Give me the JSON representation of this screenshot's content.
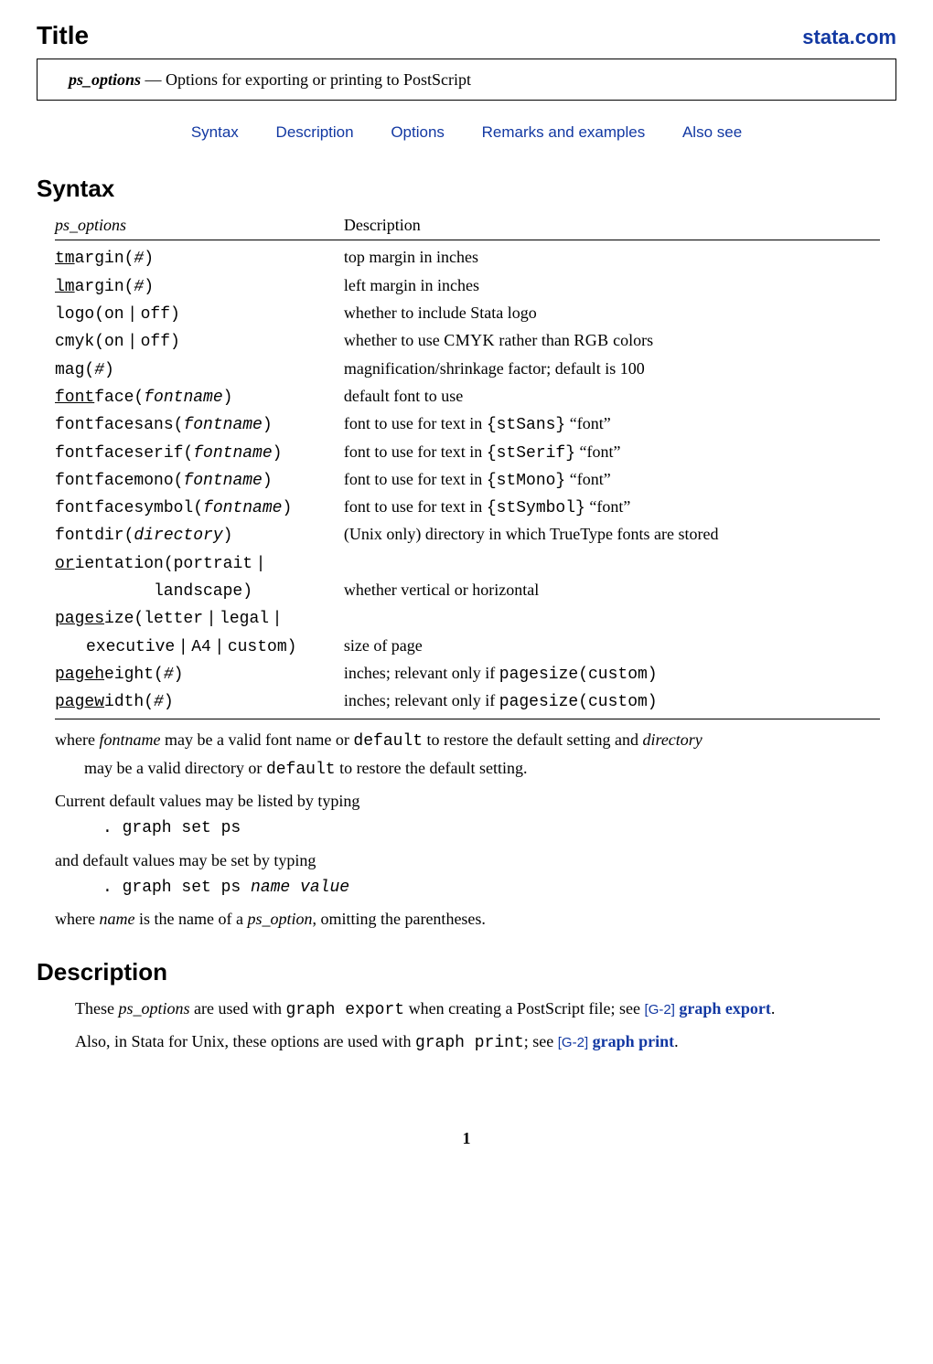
{
  "header": {
    "title_label": "Title",
    "site_link": "stata.com"
  },
  "title_box": {
    "name": "ps_options",
    "dash": " — ",
    "desc": "Options for exporting or printing to PostScript"
  },
  "nav": {
    "syntax": "Syntax",
    "description": "Description",
    "options": "Options",
    "remarks": "Remarks and examples",
    "also_see": "Also see"
  },
  "syntax": {
    "heading": "Syntax",
    "col1": "ps_options",
    "col2": "Description",
    "rows": [
      {
        "opt": "<span class=\"u\">tm</span>argin(<span class=\"arg\">#</span>)",
        "desc": "top margin in inches"
      },
      {
        "opt": "<span class=\"u\">lm</span>argin(<span class=\"arg\">#</span>)",
        "desc": "left margin in inches"
      },
      {
        "opt": "logo(on&thinsp;|&thinsp;off)",
        "desc": "whether to include Stata logo"
      },
      {
        "opt": "cmyk(on&thinsp;|&thinsp;off)",
        "desc": "whether to use <span class=\"sc\">CMYK</span> rather than <span class=\"sc\">RGB</span> colors",
        "desc_is_html": true
      },
      {
        "opt": "mag(<span class=\"arg\">#</span>)",
        "desc": "magnification/shrinkage factor; default is 100"
      },
      {
        "opt": "<span class=\"u\">font</span>face(<span class=\"arg\">fontname</span>)",
        "desc": "default font to use"
      },
      {
        "opt": "fontfacesans(<span class=\"arg\">fontname</span>)",
        "desc": "font to use for text in <span class=\"tt\">{stSans}</span> &ldquo;font&rdquo;",
        "desc_is_html": true
      },
      {
        "opt": "fontfaceserif(<span class=\"arg\">fontname</span>)",
        "desc": "font to use for text in <span class=\"tt\">{stSerif}</span> &ldquo;font&rdquo;",
        "desc_is_html": true
      },
      {
        "opt": "fontfacemono(<span class=\"arg\">fontname</span>)",
        "desc": "font to use for text in <span class=\"tt\">{stMono}</span> &ldquo;font&rdquo;",
        "desc_is_html": true
      },
      {
        "opt": "fontfacesymbol(<span class=\"arg\">fontname</span>)",
        "desc": "font to use for text in <span class=\"tt\">{stSymbol}</span> &ldquo;font&rdquo;",
        "desc_is_html": true
      },
      {
        "opt": "fontdir(<span class=\"arg\">directory</span>)",
        "desc": "(Unix only) directory in which TrueType fonts are stored"
      },
      {
        "opt": "<span class=\"u\">or</span>ientation(portrait&thinsp;|",
        "desc": ""
      },
      {
        "opt": "<span class=\"indent3\"></span>landscape)",
        "desc": "whether vertical or horizontal"
      },
      {
        "opt": "<span class=\"u\">pages</span>ize(letter&thinsp;|&thinsp;legal&thinsp;|",
        "desc": ""
      },
      {
        "opt": "<span class=\"indent2\"></span>executive&thinsp;|&thinsp;A4&thinsp;|&thinsp;custom)",
        "desc": "size of page"
      },
      {
        "opt": "<span class=\"u\">pageh</span>eight(<span class=\"arg\">#</span>)",
        "desc": "inches; relevant only if <span class=\"tt\">pagesize(custom)</span>",
        "desc_is_html": true
      },
      {
        "opt": "<span class=\"u\">pagew</span>idth(<span class=\"arg\">#</span>)",
        "desc": "inches; relevant only if <span class=\"tt\">pagesize(custom)</span>",
        "desc_is_html": true
      }
    ],
    "note1_a": "where ",
    "note1_b": "fontname",
    "note1_c": " may be a valid font name or ",
    "note1_d": "default",
    "note1_e": " to restore the default setting and ",
    "note1_f": "directory",
    "note1_g": "may be a valid directory or ",
    "note1_h": "default",
    "note1_i": " to restore the default setting.",
    "note2": "Current default values may be listed by typing",
    "code1": ". graph set ps",
    "note3": "and default values may be set by typing",
    "code2_a": ". graph set ps ",
    "code2_b": "name value",
    "note4_a": "where ",
    "note4_b": "name",
    "note4_c": " is the name of a ",
    "note4_d": "ps_option",
    "note4_e": ", omitting the parentheses."
  },
  "description": {
    "heading": "Description",
    "p1_a": "These ",
    "p1_b": "ps_options",
    "p1_c": " are used with ",
    "p1_d": "graph export",
    "p1_e": " when creating a PostScript file; see ",
    "p1_ref": "[G-2]",
    "p1_link": " graph export",
    "p1_end": ".",
    "p2_a": "Also, in Stata for Unix, these options are used with ",
    "p2_b": "graph print",
    "p2_c": "; see ",
    "p2_ref": "[G-2]",
    "p2_link": " graph print",
    "p2_end": "."
  },
  "page_number": "1"
}
